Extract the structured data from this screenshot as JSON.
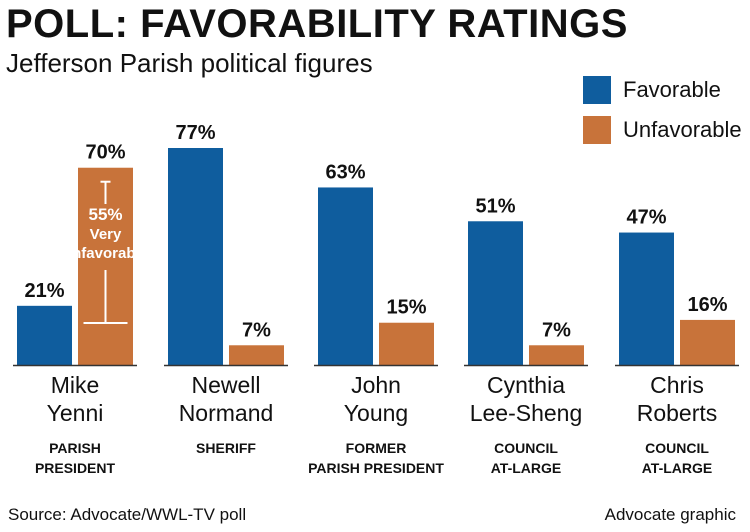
{
  "title": "POLL: FAVORABILITY RATINGS",
  "subtitle": "Jefferson Parish political figures",
  "source": "Source: Advocate/WWL-TV poll",
  "credit": "Advocate graphic",
  "colors": {
    "favorable": "#0f5d9e",
    "unfavorable": "#c8733a",
    "baseline": "#333333"
  },
  "chart_data": {
    "type": "bar",
    "categories": [
      {
        "name_lines": [
          "Mike",
          "Yenni"
        ],
        "role_lines": [
          "PARISH",
          "PRESIDENT"
        ]
      },
      {
        "name_lines": [
          "Newell",
          "Normand"
        ],
        "role_lines": [
          "SHERIFF"
        ]
      },
      {
        "name_lines": [
          "John",
          "Young"
        ],
        "role_lines": [
          "FORMER",
          "PARISH PRESIDENT"
        ]
      },
      {
        "name_lines": [
          "Cynthia",
          "Lee-Sheng"
        ],
        "role_lines": [
          "COUNCIL",
          "AT-LARGE"
        ]
      },
      {
        "name_lines": [
          "Chris",
          "Roberts"
        ],
        "role_lines": [
          "COUNCIL",
          "AT-LARGE"
        ]
      }
    ],
    "series": [
      {
        "name": "Favorable",
        "values": [
          21,
          77,
          63,
          51,
          47
        ],
        "labels": [
          "21%",
          "77%",
          "63%",
          "51%",
          "47%"
        ]
      },
      {
        "name": "Unfavorable",
        "values": [
          70,
          7,
          15,
          7,
          16
        ],
        "labels": [
          "70%",
          "7%",
          "15%",
          "7%",
          "16%"
        ]
      }
    ],
    "annotation": {
      "category_index": 0,
      "value_text": "55%",
      "line1": "Very",
      "line2": "unfavorable"
    },
    "ylim": [
      0,
      77
    ]
  }
}
